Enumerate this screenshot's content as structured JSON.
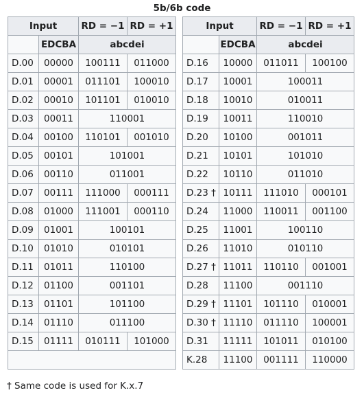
{
  "caption": "5b/6b code",
  "headers": {
    "input": "Input",
    "rd_neg": "RD = −1",
    "rd_pos": "RD = +1",
    "edcba": "EDCBA",
    "abcdei": "abcdei"
  },
  "left_rows": [
    {
      "sym": "D.00",
      "bits": "00000",
      "neg": "100111",
      "pos": "011000"
    },
    {
      "sym": "D.01",
      "bits": "00001",
      "neg": "011101",
      "pos": "100010"
    },
    {
      "sym": "D.02",
      "bits": "00010",
      "neg": "101101",
      "pos": "010010"
    },
    {
      "sym": "D.03",
      "bits": "00011",
      "both": "110001"
    },
    {
      "sym": "D.04",
      "bits": "00100",
      "neg": "110101",
      "pos": "001010"
    },
    {
      "sym": "D.05",
      "bits": "00101",
      "both": "101001"
    },
    {
      "sym": "D.06",
      "bits": "00110",
      "both": "011001"
    },
    {
      "sym": "D.07",
      "bits": "00111",
      "neg": "111000",
      "pos": "000111"
    },
    {
      "sym": "D.08",
      "bits": "01000",
      "neg": "111001",
      "pos": "000110"
    },
    {
      "sym": "D.09",
      "bits": "01001",
      "both": "100101"
    },
    {
      "sym": "D.10",
      "bits": "01010",
      "both": "010101"
    },
    {
      "sym": "D.11",
      "bits": "01011",
      "both": "110100"
    },
    {
      "sym": "D.12",
      "bits": "01100",
      "both": "001101"
    },
    {
      "sym": "D.13",
      "bits": "01101",
      "both": "101100"
    },
    {
      "sym": "D.14",
      "bits": "01110",
      "both": "011100"
    },
    {
      "sym": "D.15",
      "bits": "01111",
      "neg": "010111",
      "pos": "101000"
    }
  ],
  "right_rows": [
    {
      "sym": "D.16",
      "bits": "10000",
      "neg": "011011",
      "pos": "100100"
    },
    {
      "sym": "D.17",
      "bits": "10001",
      "both": "100011"
    },
    {
      "sym": "D.18",
      "bits": "10010",
      "both": "010011"
    },
    {
      "sym": "D.19",
      "bits": "10011",
      "both": "110010"
    },
    {
      "sym": "D.20",
      "bits": "10100",
      "both": "001011"
    },
    {
      "sym": "D.21",
      "bits": "10101",
      "both": "101010"
    },
    {
      "sym": "D.22",
      "bits": "10110",
      "both": "011010"
    },
    {
      "sym": "D.23 †",
      "bits": "10111",
      "neg": "111010",
      "pos": "000101"
    },
    {
      "sym": "D.24",
      "bits": "11000",
      "neg": "110011",
      "pos": "001100"
    },
    {
      "sym": "D.25",
      "bits": "11001",
      "both": "100110"
    },
    {
      "sym": "D.26",
      "bits": "11010",
      "both": "010110"
    },
    {
      "sym": "D.27 †",
      "bits": "11011",
      "neg": "110110",
      "pos": "001001"
    },
    {
      "sym": "D.28",
      "bits": "11100",
      "both": "001110"
    },
    {
      "sym": "D.29 †",
      "bits": "11101",
      "neg": "101110",
      "pos": "010001"
    },
    {
      "sym": "D.30 †",
      "bits": "11110",
      "neg": "011110",
      "pos": "100001"
    },
    {
      "sym": "D.31",
      "bits": "11111",
      "neg": "101011",
      "pos": "010100"
    },
    {
      "sym": "K.28",
      "bits": "11100",
      "neg": "001111",
      "pos": "110000"
    }
  ],
  "footnote": "† Same code is used for K.x.7"
}
